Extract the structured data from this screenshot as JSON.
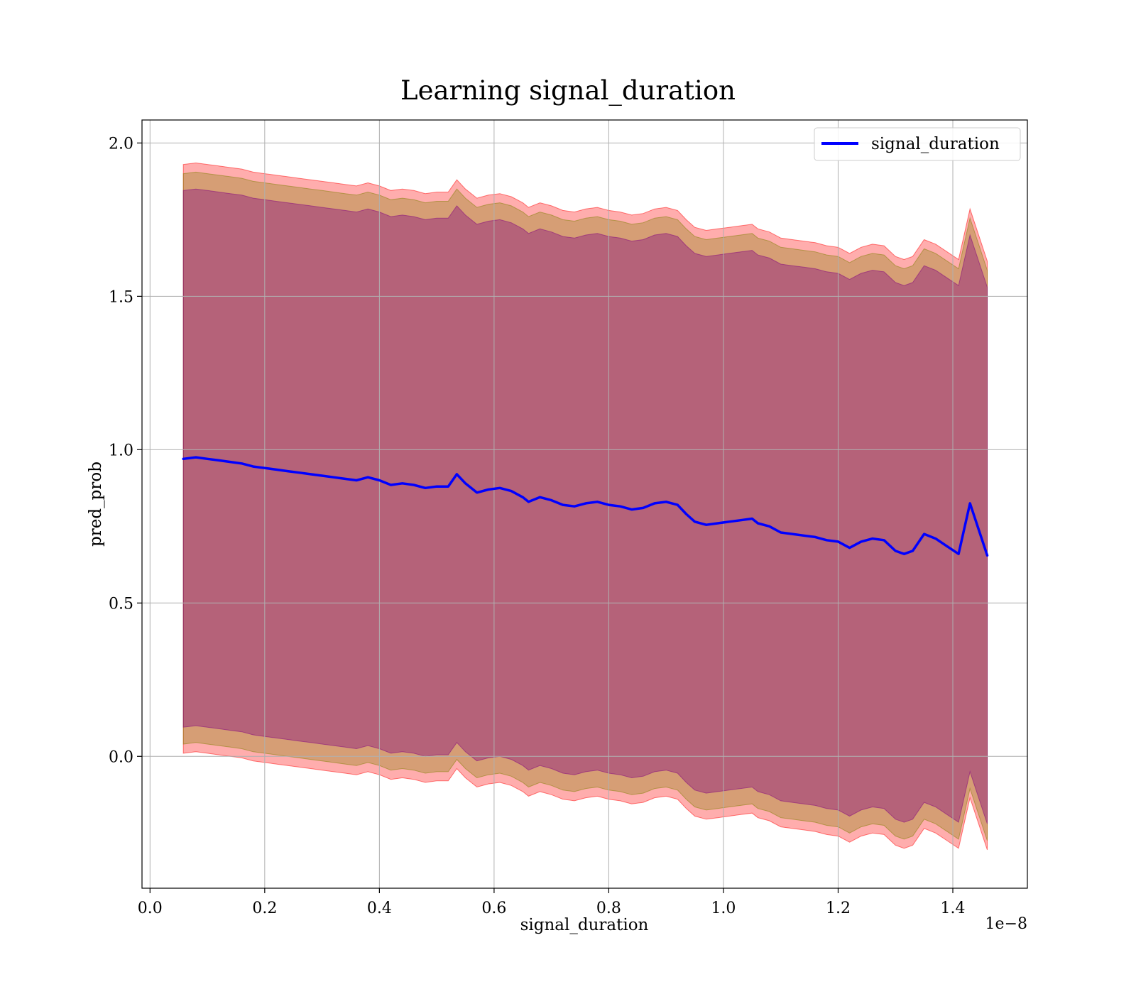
{
  "chart_data": {
    "type": "line",
    "title": "Learning signal_duration",
    "xlabel": "signal_duration",
    "ylabel": "pred_prob",
    "x_offset_label": "1e−8",
    "xlim": [
      -0.014,
      1.53
    ],
    "ylim": [
      -0.43,
      2.075
    ],
    "x_ticks": [
      0.0,
      0.2,
      0.4,
      0.6,
      0.8,
      1.0,
      1.2,
      1.4
    ],
    "x_tick_labels": [
      "0.0",
      "0.2",
      "0.4",
      "0.6",
      "0.8",
      "1.0",
      "1.2",
      "1.4"
    ],
    "y_ticks": [
      0.0,
      0.5,
      1.0,
      1.5,
      2.0
    ],
    "y_tick_labels": [
      "0.0",
      "0.5",
      "1.0",
      "1.5",
      "2.0"
    ],
    "grid": true,
    "legend": {
      "position": "top-right",
      "entries": [
        "signal_duration"
      ]
    },
    "colors": {
      "line": "#0000ff",
      "band_outer": "#ff0000",
      "band_middle": "#808000",
      "band_inner": "#800080"
    },
    "series": [
      {
        "name": "signal_duration",
        "x": [
          0.058,
          0.08,
          0.1,
          0.12,
          0.14,
          0.16,
          0.18,
          0.2,
          0.22,
          0.24,
          0.26,
          0.28,
          0.3,
          0.32,
          0.34,
          0.36,
          0.38,
          0.4,
          0.42,
          0.44,
          0.46,
          0.48,
          0.5,
          0.52,
          0.535,
          0.55,
          0.57,
          0.59,
          0.61,
          0.63,
          0.65,
          0.66,
          0.68,
          0.7,
          0.72,
          0.74,
          0.76,
          0.78,
          0.8,
          0.82,
          0.84,
          0.86,
          0.88,
          0.9,
          0.92,
          0.935,
          0.95,
          0.97,
          0.99,
          1.01,
          1.03,
          1.05,
          1.06,
          1.08,
          1.1,
          1.12,
          1.14,
          1.16,
          1.18,
          1.2,
          1.22,
          1.24,
          1.26,
          1.28,
          1.3,
          1.315,
          1.33,
          1.35,
          1.37,
          1.39,
          1.41,
          1.43,
          1.46
        ],
        "values": [
          0.97,
          0.975,
          0.97,
          0.965,
          0.96,
          0.955,
          0.945,
          0.94,
          0.935,
          0.93,
          0.925,
          0.92,
          0.915,
          0.91,
          0.905,
          0.9,
          0.91,
          0.9,
          0.885,
          0.89,
          0.885,
          0.875,
          0.88,
          0.88,
          0.92,
          0.89,
          0.86,
          0.87,
          0.875,
          0.865,
          0.845,
          0.83,
          0.845,
          0.835,
          0.82,
          0.815,
          0.825,
          0.83,
          0.82,
          0.815,
          0.805,
          0.81,
          0.825,
          0.83,
          0.82,
          0.79,
          0.765,
          0.755,
          0.76,
          0.765,
          0.77,
          0.775,
          0.76,
          0.75,
          0.73,
          0.725,
          0.72,
          0.715,
          0.705,
          0.7,
          0.68,
          0.7,
          0.71,
          0.705,
          0.67,
          0.66,
          0.67,
          0.725,
          0.71,
          0.685,
          0.66,
          0.825,
          0.655
        ]
      }
    ],
    "bands": [
      {
        "name": "outer",
        "offset": 0.96
      },
      {
        "name": "middle",
        "offset": 0.93
      },
      {
        "name": "inner",
        "offset": 0.875
      }
    ]
  }
}
